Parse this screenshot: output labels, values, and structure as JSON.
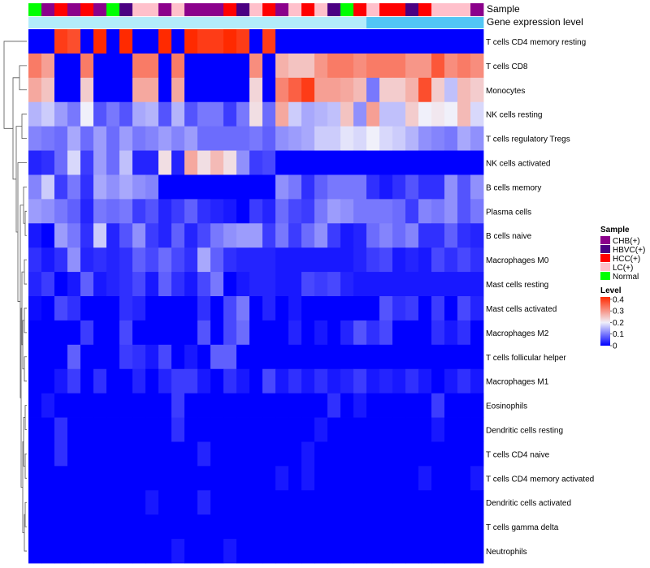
{
  "chart_data": {
    "type": "heatmap",
    "title": "",
    "annotation_rows": [
      "Sample",
      "Gene expression level"
    ],
    "sample_groups": [
      "CHB(+)",
      "HBVC(+)",
      "HCC(+)",
      "LC(+)",
      "Normal"
    ],
    "sample_colors": {
      "CHB(+)": "#8B008B",
      "HBVC(+)": "#4B0082",
      "HCC(+)": "#FF0000",
      "LC(+)": "#FFC0CB",
      "Normal": "#00FF00"
    },
    "columns": [
      {
        "sample": "Normal",
        "expr": "low"
      },
      {
        "sample": "CHB(+)",
        "expr": "low"
      },
      {
        "sample": "HCC(+)",
        "expr": "low"
      },
      {
        "sample": "CHB(+)",
        "expr": "low"
      },
      {
        "sample": "HCC(+)",
        "expr": "low"
      },
      {
        "sample": "CHB(+)",
        "expr": "low"
      },
      {
        "sample": "Normal",
        "expr": "low"
      },
      {
        "sample": "HBVC(+)",
        "expr": "low"
      },
      {
        "sample": "LC(+)",
        "expr": "low"
      },
      {
        "sample": "LC(+)",
        "expr": "low"
      },
      {
        "sample": "CHB(+)",
        "expr": "low"
      },
      {
        "sample": "LC(+)",
        "expr": "low"
      },
      {
        "sample": "CHB(+)",
        "expr": "low"
      },
      {
        "sample": "CHB(+)",
        "expr": "low"
      },
      {
        "sample": "CHB(+)",
        "expr": "low"
      },
      {
        "sample": "HCC(+)",
        "expr": "low"
      },
      {
        "sample": "HBVC(+)",
        "expr": "low"
      },
      {
        "sample": "LC(+)",
        "expr": "low"
      },
      {
        "sample": "HCC(+)",
        "expr": "low"
      },
      {
        "sample": "CHB(+)",
        "expr": "low"
      },
      {
        "sample": "LC(+)",
        "expr": "low"
      },
      {
        "sample": "HCC(+)",
        "expr": "low"
      },
      {
        "sample": "LC(+)",
        "expr": "low"
      },
      {
        "sample": "HBVC(+)",
        "expr": "low"
      },
      {
        "sample": "Normal",
        "expr": "low"
      },
      {
        "sample": "HCC(+)",
        "expr": "low"
      },
      {
        "sample": "LC(+)",
        "expr": "high"
      },
      {
        "sample": "HCC(+)",
        "expr": "high"
      },
      {
        "sample": "HCC(+)",
        "expr": "high"
      },
      {
        "sample": "HBVC(+)",
        "expr": "high"
      },
      {
        "sample": "HCC(+)",
        "expr": "high"
      },
      {
        "sample": "LC(+)",
        "expr": "high"
      },
      {
        "sample": "LC(+)",
        "expr": "high"
      },
      {
        "sample": "LC(+)",
        "expr": "high"
      },
      {
        "sample": "CHB(+)",
        "expr": "high"
      }
    ],
    "expression_colors": {
      "low": "#b3ecfa",
      "high": "#52c6f5"
    },
    "rows": [
      "T cells CD4 memory resting",
      "T cells CD8",
      "Monocytes",
      "NK cells resting",
      "T cells regulatory  Tregs",
      "NK cells activated",
      "B cells memory",
      "Plasma cells",
      "B cells naive",
      "Macrophages M0",
      "Mast cells resting",
      "Mast cells activated",
      "Macrophages M2",
      "T cells follicular helper",
      "Macrophages M1",
      "Eosinophils",
      "Dendritic cells resting",
      "T cells CD4 naive",
      "T cells CD4 memory activated",
      "Dendritic cells activated",
      "T cells gamma delta",
      "Neutrophils"
    ],
    "values": [
      [
        0.0,
        0.0,
        0.4,
        0.38,
        0.0,
        0.42,
        0.0,
        0.42,
        0.0,
        0.0,
        0.42,
        0.0,
        0.42,
        0.4,
        0.4,
        0.42,
        0.4,
        0.0,
        0.4,
        0.0,
        0.0,
        0.0,
        0.0,
        0.0,
        0.0,
        0.0,
        0.0,
        0.0,
        0.0,
        0.0,
        0.0,
        0.0,
        0.0,
        0.0,
        0.0
      ],
      [
        0.33,
        0.29,
        0.0,
        0.0,
        0.33,
        0.0,
        0.0,
        0.0,
        0.33,
        0.33,
        0.0,
        0.33,
        0.0,
        0.0,
        0.0,
        0.0,
        0.0,
        0.31,
        0.0,
        0.27,
        0.25,
        0.25,
        0.3,
        0.33,
        0.33,
        0.31,
        0.33,
        0.33,
        0.33,
        0.3,
        0.3,
        0.37,
        0.31,
        0.33,
        0.31
      ],
      [
        0.28,
        0.25,
        0.0,
        0.0,
        0.24,
        0.0,
        0.0,
        0.0,
        0.28,
        0.28,
        0.0,
        0.28,
        0.0,
        0.0,
        0.0,
        0.0,
        0.0,
        0.23,
        0.0,
        0.32,
        0.36,
        0.4,
        0.29,
        0.29,
        0.28,
        0.26,
        0.1,
        0.24,
        0.24,
        0.27,
        0.38,
        0.24,
        0.16,
        0.26,
        0.24
      ],
      [
        0.15,
        0.17,
        0.13,
        0.1,
        0.2,
        0.07,
        0.1,
        0.07,
        0.14,
        0.15,
        0.07,
        0.15,
        0.07,
        0.1,
        0.1,
        0.05,
        0.1,
        0.22,
        0.09,
        0.28,
        0.17,
        0.14,
        0.15,
        0.16,
        0.25,
        0.12,
        0.29,
        0.16,
        0.16,
        0.24,
        0.2,
        0.21,
        0.2,
        0.26,
        0.18
      ],
      [
        0.11,
        0.1,
        0.09,
        0.14,
        0.09,
        0.13,
        0.09,
        0.13,
        0.1,
        0.11,
        0.13,
        0.11,
        0.13,
        0.09,
        0.09,
        0.09,
        0.09,
        0.1,
        0.08,
        0.12,
        0.13,
        0.14,
        0.17,
        0.17,
        0.19,
        0.18,
        0.2,
        0.18,
        0.17,
        0.15,
        0.12,
        0.11,
        0.1,
        0.14,
        0.12
      ],
      [
        0.03,
        0.04,
        0.09,
        0.18,
        0.05,
        0.13,
        0.09,
        0.16,
        0.03,
        0.03,
        0.22,
        0.03,
        0.28,
        0.22,
        0.26,
        0.22,
        0.12,
        0.05,
        0.06,
        0.0,
        0.0,
        0.0,
        0.0,
        0.0,
        0.0,
        0.0,
        0.0,
        0.0,
        0.0,
        0.0,
        0.0,
        0.0,
        0.0,
        0.0,
        0.0
      ],
      [
        0.11,
        0.17,
        0.05,
        0.1,
        0.04,
        0.14,
        0.12,
        0.14,
        0.12,
        0.11,
        0.0,
        0.0,
        0.0,
        0.0,
        0.0,
        0.0,
        0.0,
        0.0,
        0.0,
        0.12,
        0.1,
        0.04,
        0.08,
        0.1,
        0.1,
        0.1,
        0.04,
        0.02,
        0.04,
        0.07,
        0.04,
        0.04,
        0.12,
        0.07,
        0.12
      ],
      [
        0.13,
        0.12,
        0.1,
        0.08,
        0.03,
        0.1,
        0.09,
        0.1,
        0.05,
        0.07,
        0.03,
        0.05,
        0.08,
        0.04,
        0.03,
        0.02,
        0.0,
        0.05,
        0.03,
        0.09,
        0.06,
        0.05,
        0.1,
        0.13,
        0.12,
        0.1,
        0.1,
        0.1,
        0.09,
        0.05,
        0.11,
        0.1,
        0.12,
        0.07,
        0.1
      ],
      [
        0.02,
        0.0,
        0.13,
        0.1,
        0.04,
        0.17,
        0.03,
        0.07,
        0.12,
        0.05,
        0.03,
        0.08,
        0.03,
        0.06,
        0.1,
        0.12,
        0.13,
        0.13,
        0.05,
        0.1,
        0.05,
        0.09,
        0.12,
        0.05,
        0.02,
        0.03,
        0.09,
        0.11,
        0.09,
        0.11,
        0.04,
        0.04,
        0.08,
        0.04,
        0.03
      ],
      [
        0.04,
        0.02,
        0.04,
        0.12,
        0.03,
        0.04,
        0.03,
        0.04,
        0.08,
        0.06,
        0.09,
        0.06,
        0.04,
        0.14,
        0.08,
        0.04,
        0.03,
        0.03,
        0.03,
        0.02,
        0.02,
        0.02,
        0.02,
        0.02,
        0.02,
        0.03,
        0.05,
        0.06,
        0.02,
        0.03,
        0.02,
        0.06,
        0.04,
        0.06,
        0.04
      ],
      [
        0.03,
        0.05,
        0.0,
        0.02,
        0.08,
        0.02,
        0.03,
        0.04,
        0.06,
        0.02,
        0.08,
        0.04,
        0.02,
        0.06,
        0.1,
        0.0,
        0.02,
        0.03,
        0.03,
        0.02,
        0.02,
        0.06,
        0.05,
        0.06,
        0.03,
        0.02,
        0.02,
        0.02,
        0.02,
        0.02,
        0.02,
        0.02,
        0.02,
        0.02,
        0.02
      ],
      [
        0.01,
        0.0,
        0.06,
        0.04,
        0.0,
        0.0,
        0.0,
        0.04,
        0.03,
        0.0,
        0.0,
        0.0,
        0.0,
        0.04,
        0.0,
        0.06,
        0.1,
        0.0,
        0.03,
        0.0,
        0.02,
        0.0,
        0.0,
        0.0,
        0.0,
        0.0,
        0.0,
        0.07,
        0.04,
        0.05,
        0.0,
        0.05,
        0.0,
        0.06,
        0.03
      ],
      [
        0.0,
        0.0,
        0.0,
        0.0,
        0.05,
        0.0,
        0.0,
        0.06,
        0.0,
        0.0,
        0.0,
        0.0,
        0.0,
        0.07,
        0.0,
        0.06,
        0.09,
        0.0,
        0.0,
        0.0,
        0.03,
        0.0,
        0.02,
        0.0,
        0.03,
        0.07,
        0.04,
        0.06,
        0.0,
        0.0,
        0.0,
        0.04,
        0.02,
        0.04,
        0.0
      ],
      [
        0.0,
        0.0,
        0.0,
        0.08,
        0.0,
        0.0,
        0.0,
        0.05,
        0.04,
        0.02,
        0.06,
        0.0,
        0.02,
        0.0,
        0.08,
        0.08,
        0.0,
        0.0,
        0.0,
        0.0,
        0.0,
        0.0,
        0.0,
        0.0,
        0.0,
        0.0,
        0.0,
        0.0,
        0.0,
        0.0,
        0.0,
        0.0,
        0.0,
        0.0,
        0.0
      ],
      [
        0.0,
        0.0,
        0.02,
        0.05,
        0.0,
        0.04,
        0.0,
        0.0,
        0.03,
        0.0,
        0.03,
        0.05,
        0.05,
        0.02,
        0.0,
        0.04,
        0.02,
        0.0,
        0.06,
        0.02,
        0.04,
        0.02,
        0.04,
        0.02,
        0.03,
        0.05,
        0.02,
        0.03,
        0.02,
        0.04,
        0.02,
        0.0,
        0.02,
        0.04,
        0.02
      ],
      [
        0.0,
        0.02,
        0.0,
        0.0,
        0.0,
        0.0,
        0.0,
        0.0,
        0.0,
        0.0,
        0.0,
        0.05,
        0.0,
        0.0,
        0.0,
        0.0,
        0.0,
        0.0,
        0.0,
        0.0,
        0.0,
        0.0,
        0.0,
        0.04,
        0.0,
        0.02,
        0.0,
        0.0,
        0.0,
        0.0,
        0.0,
        0.05,
        0.0,
        0.0,
        0.0
      ],
      [
        0.0,
        0.0,
        0.04,
        0.0,
        0.0,
        0.0,
        0.0,
        0.0,
        0.0,
        0.0,
        0.0,
        0.04,
        0.0,
        0.0,
        0.0,
        0.0,
        0.0,
        0.0,
        0.0,
        0.0,
        0.0,
        0.0,
        0.02,
        0.0,
        0.0,
        0.0,
        0.0,
        0.0,
        0.0,
        0.0,
        0.0,
        0.02,
        0.0,
        0.0,
        0.0
      ],
      [
        0.0,
        0.0,
        0.04,
        0.0,
        0.0,
        0.0,
        0.0,
        0.0,
        0.0,
        0.0,
        0.0,
        0.0,
        0.0,
        0.03,
        0.0,
        0.0,
        0.0,
        0.0,
        0.0,
        0.0,
        0.0,
        0.02,
        0.0,
        0.0,
        0.0,
        0.0,
        0.0,
        0.0,
        0.0,
        0.0,
        0.0,
        0.0,
        0.0,
        0.0,
        0.0
      ],
      [
        0.0,
        0.0,
        0.0,
        0.0,
        0.0,
        0.0,
        0.0,
        0.0,
        0.0,
        0.0,
        0.0,
        0.0,
        0.0,
        0.0,
        0.0,
        0.0,
        0.0,
        0.0,
        0.0,
        0.02,
        0.0,
        0.02,
        0.0,
        0.0,
        0.0,
        0.0,
        0.0,
        0.0,
        0.0,
        0.0,
        0.02,
        0.0,
        0.0,
        0.0,
        0.02
      ],
      [
        0.0,
        0.0,
        0.0,
        0.0,
        0.0,
        0.0,
        0.0,
        0.0,
        0.0,
        0.02,
        0.0,
        0.0,
        0.0,
        0.03,
        0.0,
        0.0,
        0.0,
        0.0,
        0.0,
        0.0,
        0.0,
        0.0,
        0.0,
        0.0,
        0.0,
        0.0,
        0.0,
        0.0,
        0.0,
        0.0,
        0.0,
        0.0,
        0.0,
        0.0,
        0.0
      ],
      [
        0.0,
        0.0,
        0.0,
        0.0,
        0.0,
        0.0,
        0.0,
        0.0,
        0.0,
        0.0,
        0.0,
        0.0,
        0.0,
        0.0,
        0.0,
        0.0,
        0.0,
        0.0,
        0.0,
        0.0,
        0.0,
        0.0,
        0.0,
        0.0,
        0.0,
        0.0,
        0.0,
        0.0,
        0.0,
        0.0,
        0.0,
        0.0,
        0.0,
        0.0,
        0.0
      ],
      [
        0.0,
        0.0,
        0.0,
        0.0,
        0.0,
        0.0,
        0.0,
        0.0,
        0.0,
        0.0,
        0.0,
        0.02,
        0.0,
        0.0,
        0.0,
        0.02,
        0.0,
        0.0,
        0.0,
        0.0,
        0.0,
        0.0,
        0.0,
        0.0,
        0.0,
        0.0,
        0.0,
        0.0,
        0.0,
        0.0,
        0.0,
        0.0,
        0.0,
        0.0,
        0.0
      ]
    ],
    "color_scale": {
      "min": 0,
      "max": 0.42,
      "stops": [
        {
          "value": 0,
          "color": "#0000ff"
        },
        {
          "value": 0.2,
          "color": "#f0f0fa"
        },
        {
          "value": 0.42,
          "color": "#ff2a00"
        }
      ]
    },
    "legend": {
      "sample_title": "Sample",
      "level_title": "Level",
      "level_ticks": [
        "0.4",
        "0.3",
        "0.2",
        "0.1",
        "0"
      ],
      "level_tick_values": [
        0.4,
        0.3,
        0.2,
        0.1,
        0
      ]
    },
    "row_dendrogram": true,
    "xlabel": "",
    "ylabel": ""
  }
}
